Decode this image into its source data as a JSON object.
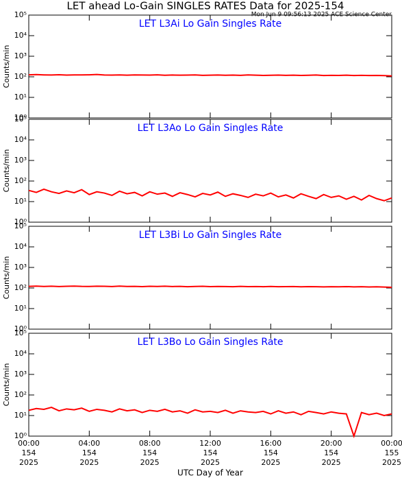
{
  "title": "LET ahead Lo-Gain SINGLES RATES Data for 2025-154",
  "subtitle": "Mon Jun  9 09:56:13 2025 ACE Science Center",
  "xlabel": "UTC Day of Year",
  "chart_data": [
    {
      "type": "line",
      "title": "LET L3Ai Lo Gain Singles Rate",
      "ylabel": "Counts/min",
      "log": true,
      "xlim": [
        0,
        24
      ],
      "xticks": [
        0,
        4,
        8,
        12,
        16,
        20,
        24
      ],
      "ylim": [
        1,
        100000
      ],
      "yticks": [
        {
          "value": 1,
          "label": "10⁰"
        },
        {
          "value": 10,
          "label": "10¹"
        },
        {
          "value": 100,
          "label": "10²"
        },
        {
          "value": 1000,
          "label": "10³"
        },
        {
          "value": 10000,
          "label": "10⁴"
        },
        {
          "value": 100000,
          "label": "10⁵"
        }
      ],
      "x": [
        0,
        0.5,
        1,
        1.5,
        2,
        2.5,
        3,
        3.5,
        4,
        4.5,
        5,
        5.5,
        6,
        6.5,
        7,
        7.5,
        8,
        8.5,
        9,
        9.5,
        10,
        10.5,
        11,
        11.5,
        12,
        12.5,
        13,
        13.5,
        14,
        14.5,
        15,
        15.5,
        16,
        16.5,
        17,
        17.5,
        18,
        18.5,
        19,
        19.5,
        20,
        20.5,
        21,
        21.5,
        22,
        22.5,
        23,
        23.5,
        24
      ],
      "series": [
        {
          "color": "#ff0000",
          "values": [
            125,
            128,
            124,
            122,
            126,
            121,
            124,
            123,
            125,
            130,
            122,
            121,
            124,
            120,
            123,
            122,
            121,
            125,
            119,
            122,
            120,
            121,
            124,
            118,
            120,
            122,
            119,
            121,
            118,
            123,
            120,
            117,
            119,
            121,
            118,
            120,
            117,
            119,
            122,
            116,
            118,
            117,
            120,
            116,
            118,
            115,
            117,
            114,
            110
          ]
        }
      ]
    },
    {
      "type": "line",
      "title": "LET L3Ao Lo Gain Singles Rate",
      "ylabel": "Counts/min",
      "log": true,
      "xlim": [
        0,
        24
      ],
      "xticks": [
        0,
        4,
        8,
        12,
        16,
        20,
        24
      ],
      "ylim": [
        1,
        100000
      ],
      "yticks": [
        {
          "value": 1,
          "label": "10⁰"
        },
        {
          "value": 10,
          "label": "10¹"
        },
        {
          "value": 100,
          "label": "10²"
        },
        {
          "value": 1000,
          "label": "10³"
        },
        {
          "value": 10000,
          "label": "10⁴"
        },
        {
          "value": 100000,
          "label": "10⁵"
        }
      ],
      "x": [
        0,
        0.5,
        1,
        1.5,
        2,
        2.5,
        3,
        3.5,
        4,
        4.5,
        5,
        5.5,
        6,
        6.5,
        7,
        7.5,
        8,
        8.5,
        9,
        9.5,
        10,
        10.5,
        11,
        11.5,
        12,
        12.5,
        13,
        13.5,
        14,
        14.5,
        15,
        15.5,
        16,
        16.5,
        17,
        17.5,
        18,
        18.5,
        19,
        19.5,
        20,
        20.5,
        21,
        21.5,
        22,
        22.5,
        23,
        23.5,
        24
      ],
      "series": [
        {
          "color": "#ff0000",
          "values": [
            35,
            28,
            40,
            30,
            25,
            33,
            27,
            38,
            22,
            30,
            26,
            20,
            32,
            24,
            28,
            19,
            30,
            23,
            26,
            18,
            27,
            22,
            17,
            25,
            21,
            29,
            18,
            24,
            20,
            16,
            23,
            19,
            26,
            17,
            21,
            15,
            24,
            18,
            14,
            22,
            16,
            19,
            13,
            18,
            12,
            20,
            14,
            11,
            15
          ]
        }
      ]
    },
    {
      "type": "line",
      "title": "LET L3Bi Lo Gain Singles Rate",
      "ylabel": "Counts/min",
      "log": true,
      "xlim": [
        0,
        24
      ],
      "xticks": [
        0,
        4,
        8,
        12,
        16,
        20,
        24
      ],
      "ylim": [
        1,
        100000
      ],
      "yticks": [
        {
          "value": 1,
          "label": "10⁰"
        },
        {
          "value": 10,
          "label": "10¹"
        },
        {
          "value": 100,
          "label": "10²"
        },
        {
          "value": 1000,
          "label": "10³"
        },
        {
          "value": 10000,
          "label": "10⁴"
        },
        {
          "value": 100000,
          "label": "10⁵"
        }
      ],
      "x": [
        0,
        0.5,
        1,
        1.5,
        2,
        2.5,
        3,
        3.5,
        4,
        4.5,
        5,
        5.5,
        6,
        6.5,
        7,
        7.5,
        8,
        8.5,
        9,
        9.5,
        10,
        10.5,
        11,
        11.5,
        12,
        12.5,
        13,
        13.5,
        14,
        14.5,
        15,
        15.5,
        16,
        16.5,
        17,
        17.5,
        18,
        18.5,
        19,
        19.5,
        20,
        20.5,
        21,
        21.5,
        22,
        22.5,
        23,
        23.5,
        24
      ],
      "series": [
        {
          "color": "#ff0000",
          "values": [
            120,
            123,
            119,
            122,
            118,
            121,
            124,
            120,
            119,
            122,
            121,
            118,
            123,
            119,
            120,
            117,
            121,
            119,
            122,
            118,
            120,
            116,
            119,
            121,
            117,
            119,
            118,
            115,
            120,
            117,
            118,
            116,
            119,
            115,
            117,
            118,
            114,
            117,
            116,
            113,
            116,
            114,
            117,
            113,
            115,
            112,
            114,
            111,
            108
          ]
        }
      ]
    },
    {
      "type": "line",
      "title": "LET L3Bo Lo Gain Singles Rate",
      "ylabel": "Counts/min",
      "log": true,
      "xlim": [
        0,
        24
      ],
      "xticks": [
        {
          "value": 0,
          "label": [
            "00:00",
            "154",
            "2025"
          ]
        },
        {
          "value": 4,
          "label": [
            "04:00",
            "154",
            "2025"
          ]
        },
        {
          "value": 8,
          "label": [
            "08:00",
            "154",
            "2025"
          ]
        },
        {
          "value": 12,
          "label": [
            "12:00",
            "154",
            "2025"
          ]
        },
        {
          "value": 16,
          "label": [
            "16:00",
            "154",
            "2025"
          ]
        },
        {
          "value": 20,
          "label": [
            "20:00",
            "154",
            "2025"
          ]
        },
        {
          "value": 24,
          "label": [
            "00:00",
            "155",
            "2025"
          ]
        }
      ],
      "ylim": [
        1,
        100000
      ],
      "yticks": [
        {
          "value": 1,
          "label": "10⁰"
        },
        {
          "value": 10,
          "label": "10¹"
        },
        {
          "value": 100,
          "label": "10²"
        },
        {
          "value": 1000,
          "label": "10³"
        },
        {
          "value": 10000,
          "label": "10⁴"
        },
        {
          "value": 100000,
          "label": "10⁵"
        }
      ],
      "x": [
        0,
        0.5,
        1,
        1.5,
        2,
        2.5,
        3,
        3.5,
        4,
        4.5,
        5,
        5.5,
        6,
        6.5,
        7,
        7.5,
        8,
        8.5,
        9,
        9.5,
        10,
        10.5,
        11,
        11.5,
        12,
        12.5,
        13,
        13.5,
        14,
        14.5,
        15,
        15.5,
        16,
        16.5,
        17,
        17.5,
        18,
        18.5,
        19,
        19.5,
        20,
        20.5,
        21,
        21.5,
        22,
        22.5,
        23,
        23.5,
        24
      ],
      "series": [
        {
          "color": "#ff0000",
          "values": [
            18,
            22,
            20,
            25,
            17,
            21,
            19,
            23,
            16,
            20,
            18,
            15,
            21,
            17,
            19,
            14,
            18,
            16,
            20,
            15,
            17,
            13,
            19,
            15,
            16,
            14,
            18,
            13,
            17,
            15,
            14,
            16,
            12,
            17,
            13,
            15,
            11,
            16,
            14,
            12,
            15,
            13,
            12,
            1,
            14,
            11,
            13,
            10,
            12
          ]
        }
      ]
    }
  ]
}
